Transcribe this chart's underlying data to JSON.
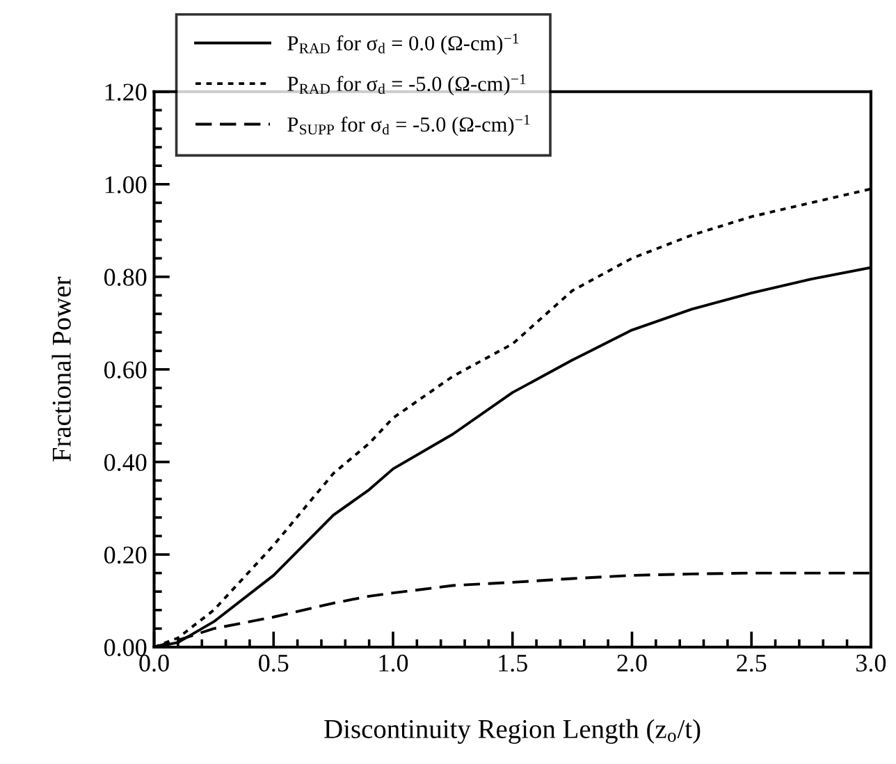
{
  "chart_data": {
    "type": "line",
    "xlabel": "Discontinuity Region Length (z$_{o}$/t)",
    "ylabel": "Fractional Power",
    "x": [
      0,
      0.1,
      0.25,
      0.5,
      0.75,
      0.9,
      1.0,
      1.25,
      1.5,
      1.75,
      2.0,
      2.25,
      2.5,
      2.75,
      3.0
    ],
    "series": [
      {
        "name": "P$_{RAD}$ for σ$_{d}$ = 0.0 (Ω-cm)$^{−1}$",
        "color": "#000000",
        "line_style": "solid",
        "values": [
          0,
          0.01,
          0.055,
          0.155,
          0.285,
          0.34,
          0.385,
          0.46,
          0.55,
          0.62,
          0.685,
          0.73,
          0.765,
          0.795,
          0.82
        ]
      },
      {
        "name": "P$_{RAD}$ for σ$_{d}$ = -5.0 (Ω-cm)$^{−1}$",
        "color": "#000000",
        "line_style": "dotted",
        "values": [
          0,
          0.02,
          0.08,
          0.22,
          0.375,
          0.44,
          0.495,
          0.585,
          0.655,
          0.77,
          0.84,
          0.89,
          0.93,
          0.96,
          0.99
        ]
      },
      {
        "name": "P$_{SUPP}$ for σ$_{d}$ = -5.0 (Ω-cm)$^{−1}$",
        "color": "#000000",
        "line_style": "dashed",
        "values": [
          0,
          0.015,
          0.04,
          0.065,
          0.095,
          0.11,
          0.117,
          0.133,
          0.14,
          0.148,
          0.155,
          0.158,
          0.16,
          0.16,
          0.16
        ]
      }
    ],
    "xlim": [
      0,
      3.0
    ],
    "xticks": [
      {
        "value": 0,
        "label": "0.0"
      },
      0.5,
      {
        "value": 1,
        "label": "1.0"
      },
      1.5,
      {
        "value": 2,
        "label": "2.0"
      },
      2.5,
      {
        "value": 3,
        "label": "3.0"
      }
    ],
    "ylim": [
      0,
      1.2
    ],
    "yticks": [
      {
        "value": 0,
        "label": "0.00"
      },
      {
        "value": 0.2,
        "label": "0.20"
      },
      {
        "value": 0.4,
        "label": "0.40"
      },
      {
        "value": 0.6,
        "label": "0.60"
      },
      {
        "value": 0.8,
        "label": "0.80"
      },
      {
        "value": 1.0,
        "label": "1.00"
      },
      {
        "value": 1.2,
        "label": "1.20"
      }
    ],
    "grid": false,
    "legend": "top left"
  }
}
